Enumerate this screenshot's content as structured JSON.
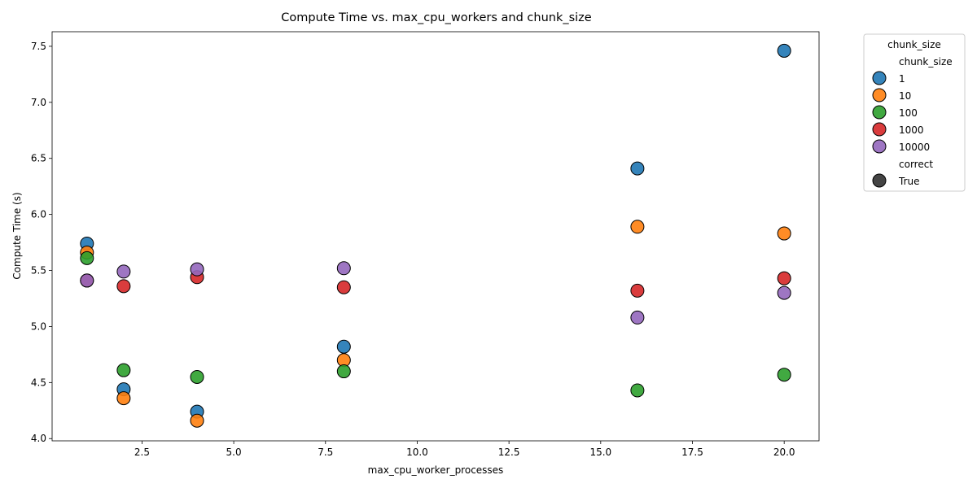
{
  "chart_data": {
    "type": "scatter",
    "title": "Compute Time vs. max_cpu_workers and chunk_size",
    "xlabel": "max_cpu_worker_processes",
    "ylabel": "Compute Time (s)",
    "xlim": [
      0.05,
      20.95
    ],
    "ylim": [
      3.98,
      7.63
    ],
    "xticks": [
      2.5,
      5.0,
      7.5,
      10.0,
      12.5,
      15.0,
      17.5,
      20.0
    ],
    "xtick_labels": [
      "2.5",
      "5.0",
      "7.5",
      "10.0",
      "12.5",
      "15.0",
      "17.5",
      "20.0"
    ],
    "yticks": [
      4.0,
      4.5,
      5.0,
      5.5,
      6.0,
      6.5,
      7.0,
      7.5
    ],
    "ytick_labels": [
      "4.0",
      "4.5",
      "5.0",
      "5.5",
      "6.0",
      "6.5",
      "7.0",
      "7.5"
    ],
    "grid": false,
    "legend": {
      "title": "chunk_size",
      "placement": "outside-right-top",
      "hue_header": "chunk_size",
      "size_header": "correct",
      "size_entry": "True",
      "size_entry_color": "#444444"
    },
    "series": [
      {
        "name": "1",
        "color": "#1f77b4",
        "x": [
          1,
          2,
          4,
          8,
          16,
          20
        ],
        "y": [
          5.74,
          4.44,
          4.24,
          4.82,
          6.41,
          7.46
        ]
      },
      {
        "name": "10",
        "color": "#ff7f0e",
        "x": [
          1,
          2,
          4,
          8,
          16,
          20
        ],
        "y": [
          5.66,
          4.36,
          4.16,
          4.7,
          5.89,
          5.83
        ]
      },
      {
        "name": "100",
        "color": "#2ca02c",
        "x": [
          1,
          2,
          4,
          8,
          16,
          20
        ],
        "y": [
          5.61,
          4.61,
          4.55,
          4.6,
          4.43,
          4.57
        ]
      },
      {
        "name": "1000",
        "color": "#d62728",
        "x": [
          1,
          2,
          4,
          8,
          16,
          20
        ],
        "y": [
          5.41,
          5.36,
          5.44,
          5.35,
          5.32,
          5.43
        ]
      },
      {
        "name": "10000",
        "color": "#9467bd",
        "x": [
          1,
          2,
          4,
          8,
          16,
          20
        ],
        "y": [
          5.41,
          5.49,
          5.51,
          5.52,
          5.08,
          5.3
        ]
      }
    ]
  }
}
